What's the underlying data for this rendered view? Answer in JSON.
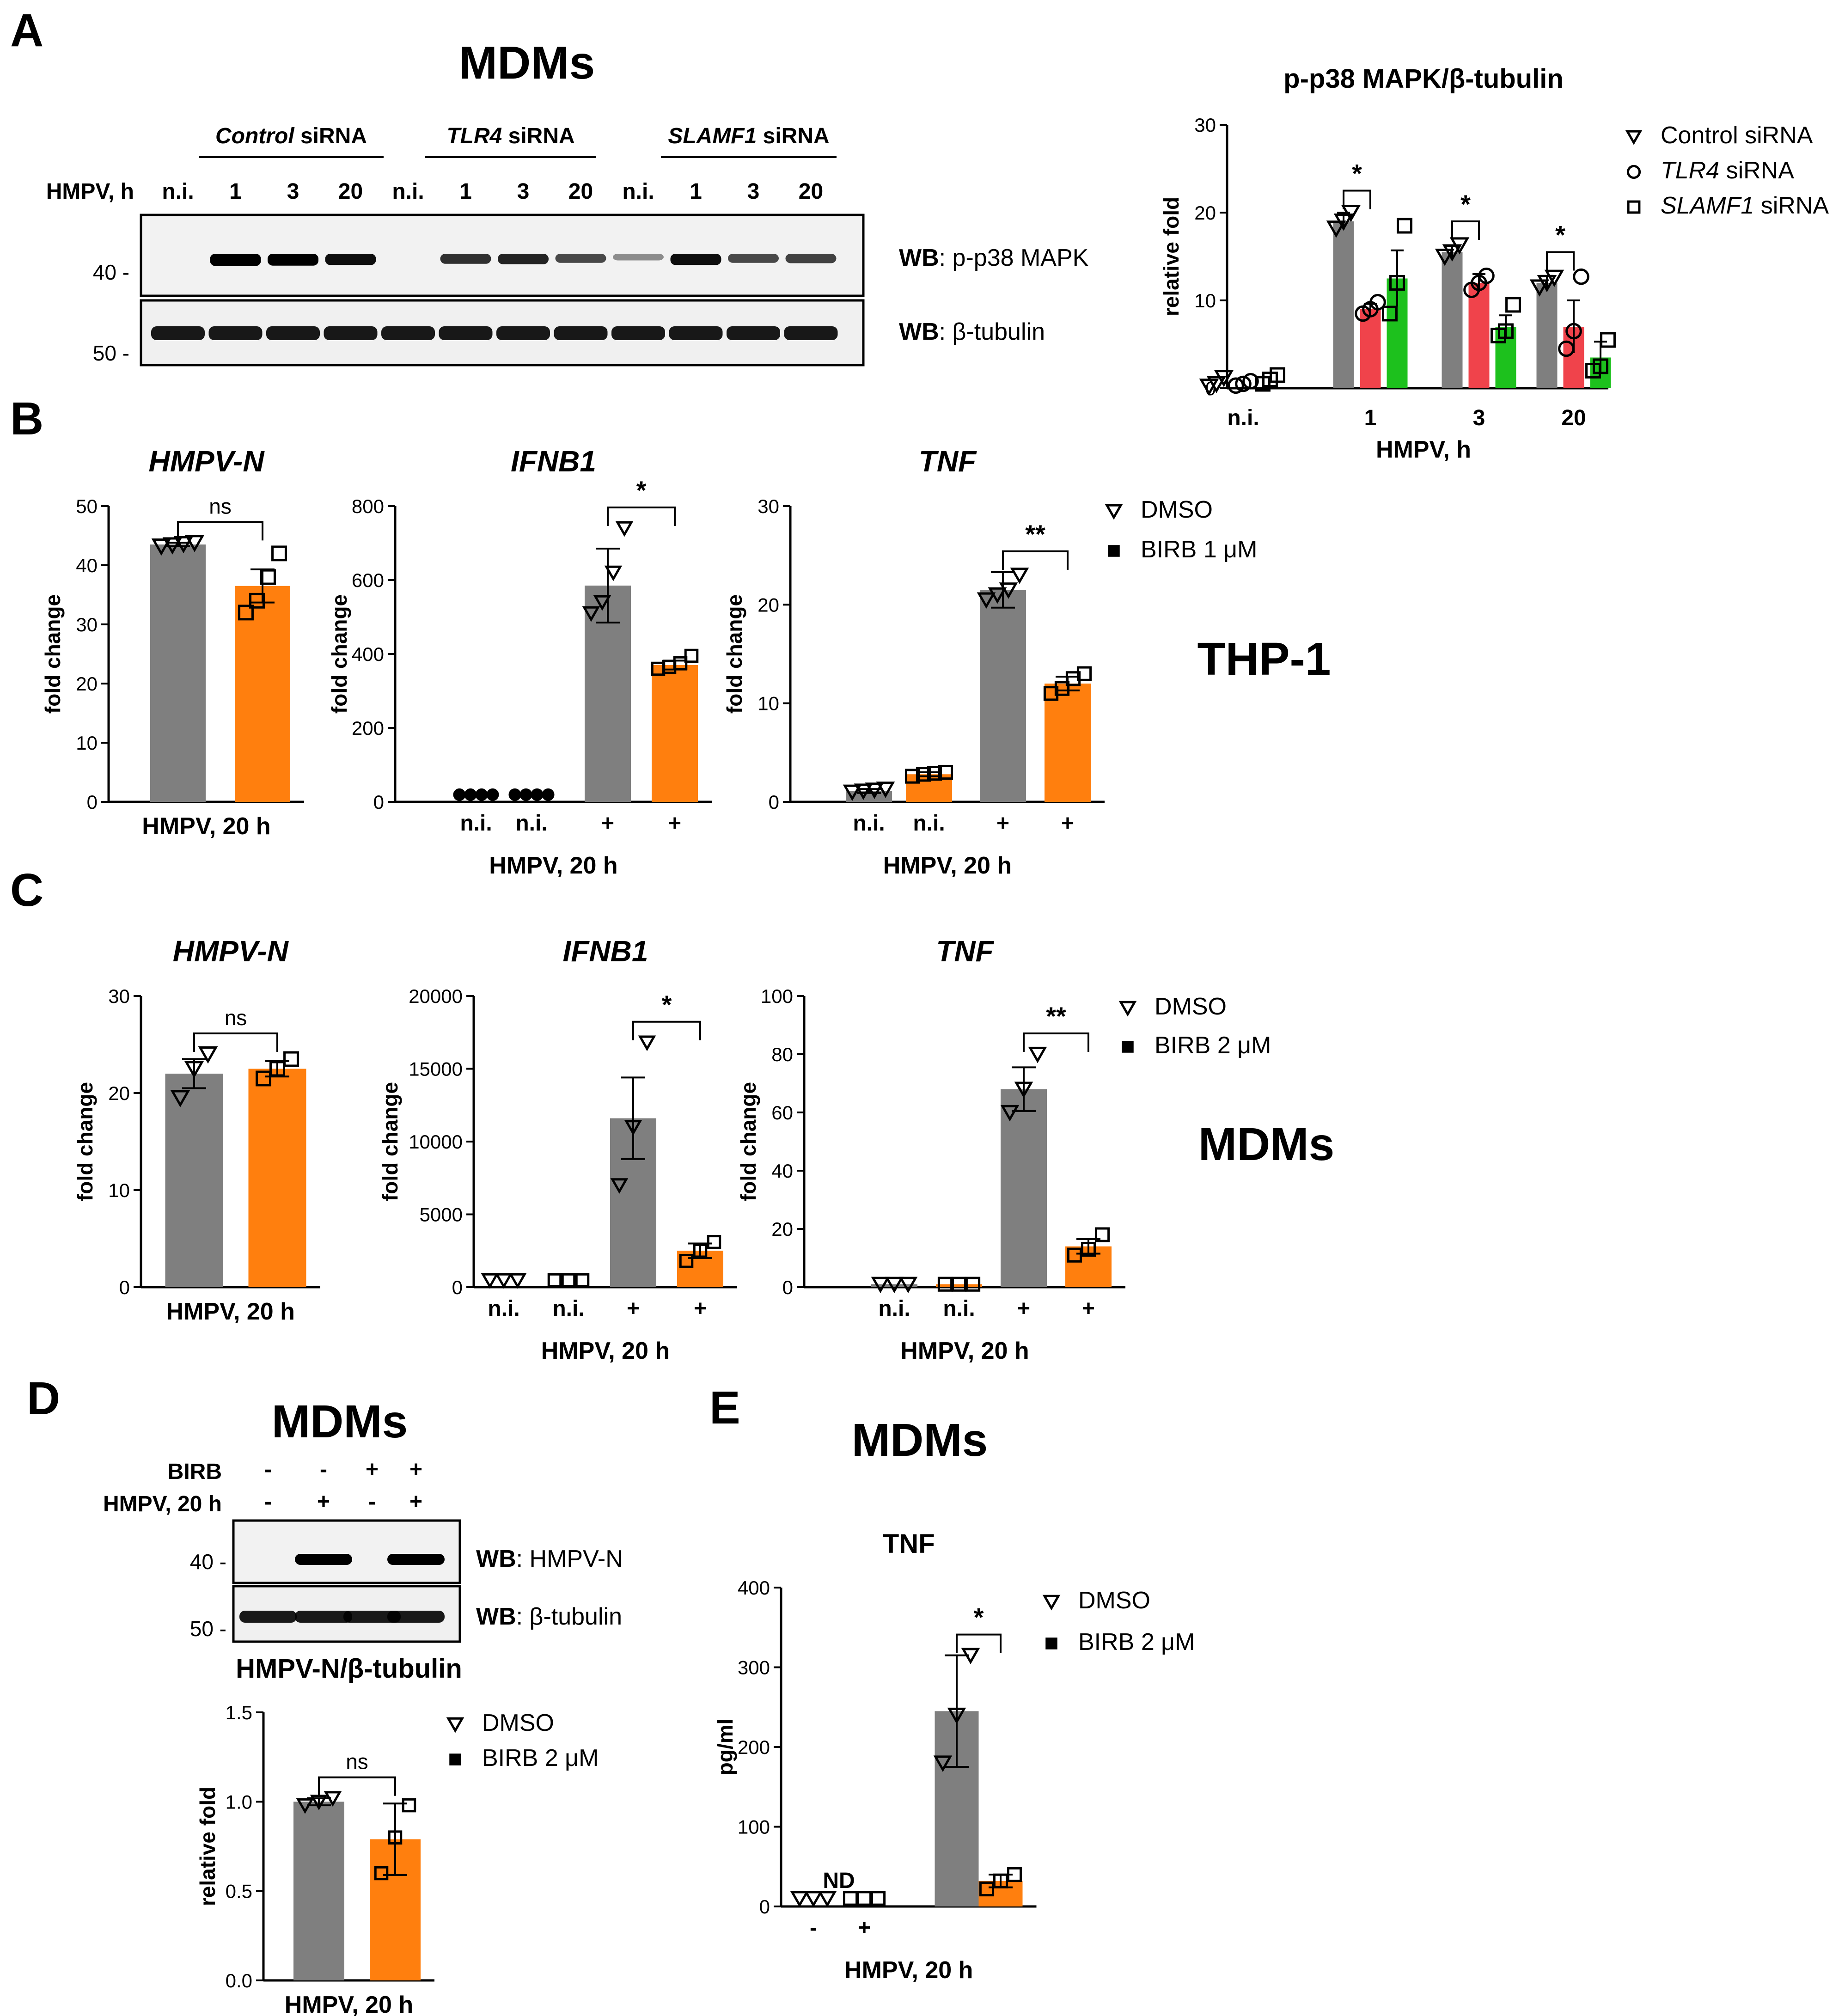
{
  "panels": {
    "A": "A",
    "B": "B",
    "C": "C",
    "D": "D",
    "E": "E"
  },
  "cell_labels": {
    "A": "MDMs",
    "B": "THP-1",
    "C": "MDMs",
    "D": "MDMs",
    "E": "MDMs"
  },
  "colors": {
    "control": "#7f7f7f",
    "tlr4": "#f0434b",
    "slamf1": "#1dc11d",
    "birb": "#ff7f0e"
  },
  "blotA": {
    "groups": [
      {
        "pre": "",
        "it": "Control",
        "post": " siRNA"
      },
      {
        "pre": "",
        "it": "TLR4",
        "post": " siRNA"
      },
      {
        "pre": "",
        "it": "SLAMF1",
        "post": " siRNA"
      }
    ],
    "row_label": "HMPV, h",
    "lanes": [
      "n.i.",
      "1",
      "3",
      "20",
      "n.i.",
      "1",
      "3",
      "20",
      "n.i.",
      "1",
      "3",
      "20"
    ],
    "band_intensity": [
      0.05,
      1,
      0.95,
      0.85,
      0.05,
      0.65,
      0.72,
      0.5,
      0.1,
      0.85,
      0.5,
      0.55
    ],
    "mw": [
      "40 -",
      "50 -"
    ],
    "wb": [
      {
        "bold": "WB",
        "rest": ": p-p38 MAPK"
      },
      {
        "bold": "WB",
        "rest": ": β-tubulin"
      }
    ]
  },
  "blotD": {
    "row1_label": "BIRB",
    "row1": [
      "-",
      "-",
      "+",
      "+"
    ],
    "row2_label": "HMPV, 20 h",
    "row2": [
      "-",
      "+",
      "-",
      "+"
    ],
    "band_intensity": [
      0,
      1,
      0,
      0.95
    ],
    "mw": [
      "40 -",
      "50 -"
    ],
    "wb": [
      {
        "bold": "WB",
        "rest": ": HMPV-N"
      },
      {
        "bold": "WB",
        "rest": ": β-tubulin"
      }
    ]
  },
  "chart_data": [
    {
      "id": "A",
      "type": "bar",
      "title": "p-p38 MAPK/β-tubulin",
      "categories": [
        "n.i.",
        "1",
        "3",
        "20"
      ],
      "xlabel": "HMPV, h",
      "ylabel": "relative fold",
      "ylim": [
        0,
        30
      ],
      "yticks": [
        "0",
        "10",
        "20",
        "30"
      ],
      "legend": [
        {
          "pre": "",
          "it": "",
          "post": "Control siRNA"
        },
        {
          "pre": "",
          "it": "TLR4",
          "post": " siRNA"
        },
        {
          "pre": "",
          "it": "SLAMF1",
          "post": " siRNA"
        }
      ],
      "legend_position": "top-right",
      "series": [
        {
          "values": [
            0.7,
            19.0,
            15.5,
            12.0
          ],
          "err": [
            0.6,
            1.0,
            0.7,
            0.8
          ],
          "points": [
            [
              0.2,
              0.5,
              1.2
            ],
            [
              18.2,
              19.0,
              20.0
            ],
            [
              15.0,
              15.5,
              16.3
            ],
            [
              11.5,
              12.0,
              12.6
            ]
          ],
          "marker": "tri"
        },
        {
          "values": [
            0.5,
            9.0,
            12.0,
            7.0
          ],
          "err": [
            0.3,
            0.6,
            1.0,
            3.0
          ],
          "points": [
            [
              0.3,
              0.5,
              0.8
            ],
            [
              8.5,
              9.0,
              9.8
            ],
            [
              11.2,
              12.0,
              12.8
            ],
            [
              4.5,
              6.5,
              12.7
            ]
          ],
          "marker": "circle"
        },
        {
          "values": [
            1.0,
            12.5,
            7.0,
            3.5
          ],
          "err": [
            0.5,
            3.2,
            1.3,
            1.8
          ],
          "points": [
            [
              0.5,
              1.0,
              1.5
            ],
            [
              8.5,
              12.0,
              18.5
            ],
            [
              6.0,
              6.5,
              9.5
            ],
            [
              2.0,
              2.5,
              5.5
            ]
          ],
          "marker": "square"
        }
      ],
      "sig": [
        {
          "text": "*",
          "cat": 1
        },
        {
          "text": "*",
          "cat": 2
        },
        {
          "text": "*",
          "cat": 3
        }
      ]
    },
    {
      "id": "B1",
      "type": "bar",
      "title": "HMPV-N",
      "categories": [
        "",
        ""
      ],
      "xlabel": "HMPV, 20 h",
      "ylabel": "fold change",
      "ylim": [
        0,
        50
      ],
      "yticks": [
        "0",
        "10",
        "20",
        "30",
        "40",
        "50"
      ],
      "bars": [
        {
          "value": 43.5,
          "err": 0.3,
          "points": [
            43.2,
            43.4,
            43.6,
            43.8
          ],
          "marker": "tri"
        },
        {
          "value": 36.5,
          "err": 2.8,
          "points": [
            32,
            34,
            38,
            42
          ],
          "marker": "square"
        }
      ],
      "sig": [
        {
          "text": "ns",
          "a": 0,
          "b": 1
        }
      ]
    },
    {
      "id": "B2",
      "type": "bar",
      "title": "IFNB1",
      "categories": [
        "n.i.",
        "n.i.",
        "+",
        "+"
      ],
      "xlabel": "HMPV, 20 h",
      "ylabel": "fold change",
      "ylim": [
        0,
        800
      ],
      "yticks": [
        "0",
        "200",
        "400",
        "600",
        "800"
      ],
      "bars": [
        {
          "value": 0,
          "err": 0,
          "points": [
            2,
            2,
            2,
            2
          ],
          "marker": "circle_filled"
        },
        {
          "value": 0,
          "err": 0,
          "points": [
            2,
            2,
            2,
            2
          ],
          "marker": "circle_filled"
        },
        {
          "value": 585,
          "err": 100,
          "points": [
            510,
            540,
            620,
            740
          ],
          "marker": "tri"
        },
        {
          "value": 370,
          "err": 12,
          "points": [
            360,
            365,
            375,
            395
          ],
          "marker": "square"
        }
      ],
      "sig": [
        {
          "text": "*",
          "a": 2,
          "b": 3
        }
      ]
    },
    {
      "id": "B3",
      "type": "bar",
      "title": "TNF",
      "categories": [
        "n.i.",
        "n.i.",
        "+",
        "+"
      ],
      "xlabel": "HMPV, 20 h",
      "ylabel": "fold change",
      "ylim": [
        0,
        30
      ],
      "yticks": [
        "0",
        "10",
        "20",
        "30"
      ],
      "legend": [
        {
          "pre": "",
          "it": "",
          "post": "DMSO"
        },
        {
          "pre": "",
          "it": "",
          "post": "BIRB 1 μM"
        }
      ],
      "legend_position": "right",
      "bars": [
        {
          "value": 1.1,
          "err": 0.2,
          "points": [
            1.0,
            1.1,
            1.2,
            1.3
          ],
          "marker": "tri"
        },
        {
          "value": 2.8,
          "err": 0.2,
          "points": [
            2.6,
            2.8,
            2.9,
            3.0
          ],
          "marker": "square"
        },
        {
          "value": 21.5,
          "err": 1.8,
          "points": [
            20.5,
            21.0,
            21.5,
            23.0
          ],
          "marker": "tri"
        },
        {
          "value": 12.0,
          "err": 0.7,
          "points": [
            11.0,
            11.5,
            12.5,
            13.0
          ],
          "marker": "square"
        }
      ],
      "sig": [
        {
          "text": "**",
          "a": 2,
          "b": 3
        }
      ]
    },
    {
      "id": "C1",
      "type": "bar",
      "title": "HMPV-N",
      "categories": [
        "",
        ""
      ],
      "xlabel": "HMPV, 20 h",
      "ylabel": "fold change",
      "ylim": [
        0,
        30
      ],
      "yticks": [
        "0",
        "10",
        "20",
        "30"
      ],
      "bars": [
        {
          "value": 22.0,
          "err": 1.5,
          "points": [
            19.5,
            22.5,
            24.0
          ],
          "marker": "tri"
        },
        {
          "value": 22.5,
          "err": 0.8,
          "points": [
            21.5,
            22.5,
            23.5
          ],
          "marker": "square"
        }
      ],
      "sig": [
        {
          "text": "ns",
          "a": 0,
          "b": 1
        }
      ]
    },
    {
      "id": "C2",
      "type": "bar",
      "title": "IFNB1",
      "categories": [
        "n.i.",
        "n.i.",
        "+",
        "+"
      ],
      "xlabel": "HMPV, 20 h",
      "ylabel": "fold change",
      "ylim": [
        0,
        20000
      ],
      "yticks": [
        "0",
        "5000",
        "10000",
        "15000",
        "20000"
      ],
      "bars": [
        {
          "value": 0,
          "err": 0,
          "points": [
            30,
            30,
            30
          ],
          "marker": "tri"
        },
        {
          "value": 0,
          "err": 0,
          "points": [
            30,
            30,
            30
          ],
          "marker": "square"
        },
        {
          "value": 11600,
          "err": 2800,
          "points": [
            7000,
            11000,
            16800
          ],
          "marker": "tri"
        },
        {
          "value": 2500,
          "err": 500,
          "points": [
            1800,
            2500,
            3100
          ],
          "marker": "square"
        }
      ],
      "sig": [
        {
          "text": "*",
          "a": 2,
          "b": 3
        }
      ]
    },
    {
      "id": "C3",
      "type": "bar",
      "title": "TNF",
      "categories": [
        "n.i.",
        "n.i.",
        "+",
        "+"
      ],
      "xlabel": "HMPV, 20 h",
      "ylabel": "fold change",
      "ylim": [
        0,
        100
      ],
      "yticks": [
        "0",
        "20",
        "40",
        "60",
        "80",
        "100"
      ],
      "legend": [
        {
          "pre": "",
          "it": "",
          "post": "DMSO"
        },
        {
          "pre": "",
          "it": "",
          "post": "BIRB 2 μM"
        }
      ],
      "legend_position": "right",
      "bars": [
        {
          "value": 1,
          "err": 0,
          "points": [
            1,
            1,
            1
          ],
          "marker": "tri"
        },
        {
          "value": 1,
          "err": 0,
          "points": [
            1,
            1,
            1
          ],
          "marker": "square"
        },
        {
          "value": 68,
          "err": 7.5,
          "points": [
            60,
            68,
            80
          ],
          "marker": "tri"
        },
        {
          "value": 14,
          "err": 2.5,
          "points": [
            11,
            13,
            18
          ],
          "marker": "square"
        }
      ],
      "sig": [
        {
          "text": "**",
          "a": 2,
          "b": 3
        }
      ]
    },
    {
      "id": "D",
      "type": "bar",
      "title": "HMPV-N/β-tubulin",
      "categories": [
        "",
        ""
      ],
      "xlabel": "HMPV, 20 h",
      "ylabel": "relative fold",
      "ylim": [
        0,
        1.5
      ],
      "yticks": [
        "0.0",
        "0.5",
        "1.0",
        "1.5"
      ],
      "legend": [
        {
          "pre": "",
          "it": "",
          "post": "DMSO"
        },
        {
          "pre": "",
          "it": "",
          "post": "BIRB 2 μM"
        }
      ],
      "legend_position": "right",
      "bars": [
        {
          "value": 1.0,
          "err": 0.02,
          "points": [
            0.98,
            1.0,
            1.02
          ],
          "marker": "tri"
        },
        {
          "value": 0.79,
          "err": 0.2,
          "points": [
            0.6,
            0.8,
            0.98
          ],
          "marker": "square"
        }
      ],
      "sig": [
        {
          "text": "ns",
          "a": 0,
          "b": 1
        }
      ]
    },
    {
      "id": "E",
      "type": "bar",
      "title": "TNF",
      "categories": [
        "-",
        "+"
      ],
      "xlabel": "HMPV, 20 h",
      "ylabel": "pg/ml",
      "ylim": [
        0,
        400
      ],
      "yticks": [
        "0",
        "100",
        "200",
        "300",
        "400"
      ],
      "legend": [
        {
          "pre": "",
          "it": "",
          "post": "DMSO"
        },
        {
          "pre": "",
          "it": "",
          "post": "BIRB 2 μM"
        }
      ],
      "legend_position": "right",
      "annotation": "ND",
      "bars": [
        {
          "value": 0,
          "err": 0,
          "points": [
            2,
            2,
            2
          ],
          "marker": "tri"
        },
        {
          "value": 0,
          "err": 0,
          "points": [
            2,
            2,
            2
          ],
          "marker": "square"
        },
        {
          "value": 245,
          "err": 70,
          "points": [
            180,
            240,
            315
          ],
          "marker": "tri"
        },
        {
          "value": 32,
          "err": 8,
          "points": [
            22,
            32,
            40
          ],
          "marker": "square"
        }
      ],
      "sig": [
        {
          "text": "*",
          "a": 2,
          "b": 3
        }
      ]
    }
  ]
}
